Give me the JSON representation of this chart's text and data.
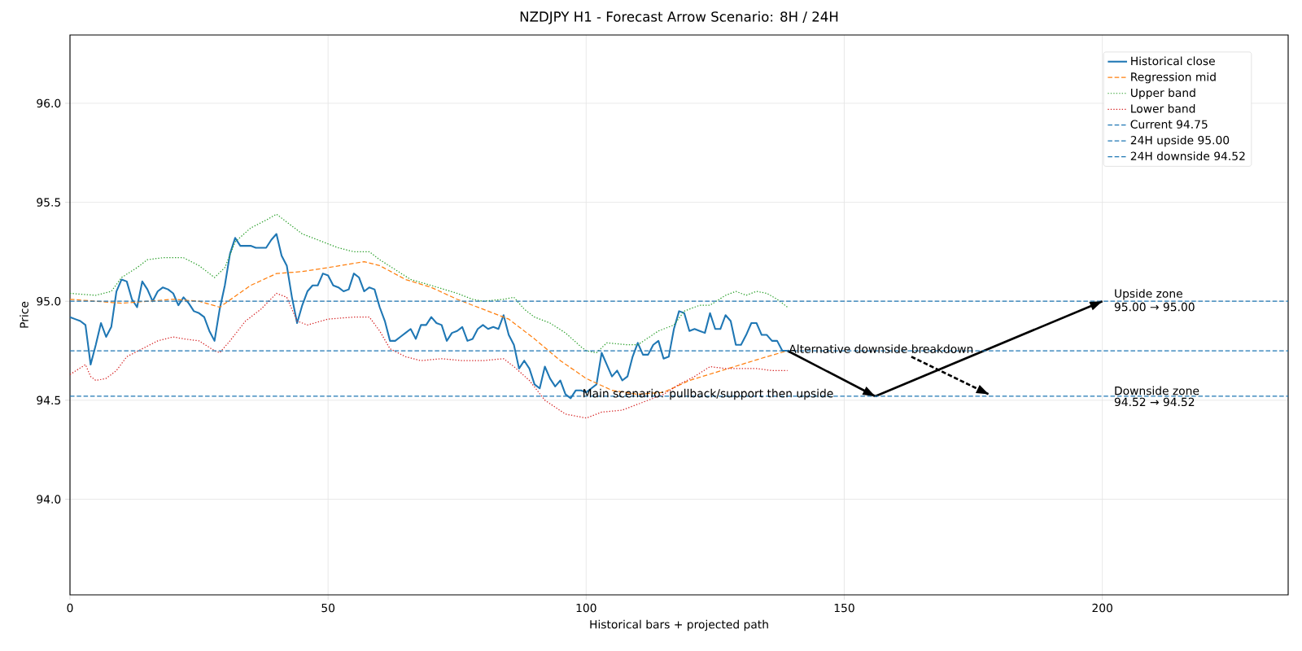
{
  "chart_data": {
    "type": "line",
    "title": "NZDJPY H1 - Forecast Arrow Scenario: 8H / 24H",
    "xlabel": "Historical bars + projected path",
    "ylabel": "Price",
    "xlim": [
      0,
      236
    ],
    "ylim": [
      93.517,
      96.345
    ],
    "xticks": [
      0,
      50,
      100,
      150,
      200
    ],
    "yticks": [
      {
        "value": 94.0,
        "label": "94.0"
      },
      {
        "value": 94.5,
        "label": "94.5"
      },
      {
        "value": 95.0,
        "label": "95.0"
      },
      {
        "value": 95.5,
        "label": "95.5"
      },
      {
        "value": 96.0,
        "label": "96.0"
      }
    ],
    "grid": true,
    "legend": "top right",
    "series": [
      {
        "name": "Historical close",
        "color": "#1f77b4",
        "line_style": "solid",
        "x": [
          0,
          1,
          2,
          3,
          4,
          5,
          6,
          7,
          8,
          9,
          10,
          11,
          12,
          13,
          14,
          15,
          16,
          17,
          18,
          19,
          20,
          21,
          22,
          23,
          24,
          25,
          26,
          27,
          28,
          29,
          30,
          31,
          32,
          33,
          34,
          35,
          36,
          37,
          38,
          39,
          40,
          41,
          42,
          43,
          44,
          45,
          46,
          47,
          48,
          49,
          50,
          51,
          52,
          53,
          54,
          55,
          56,
          57,
          58,
          59,
          60,
          61,
          62,
          63,
          64,
          65,
          66,
          67,
          68,
          69,
          70,
          71,
          72,
          73,
          74,
          75,
          76,
          77,
          78,
          79,
          80,
          81,
          82,
          83,
          84,
          85,
          86,
          87,
          88,
          89,
          90,
          91,
          92,
          93,
          94,
          95,
          96,
          97,
          98,
          99,
          100,
          101,
          102,
          103,
          104,
          105,
          106,
          107,
          108,
          109,
          110,
          111,
          112,
          113,
          114,
          115,
          116,
          117,
          118,
          119,
          120,
          121,
          122,
          123,
          124,
          125,
          126,
          127,
          128,
          129,
          130,
          131,
          132,
          133,
          134,
          135,
          136,
          137,
          138,
          139
        ],
        "values": [
          94.92,
          94.91,
          94.9,
          94.88,
          94.68,
          94.78,
          94.89,
          94.82,
          94.87,
          95.05,
          95.11,
          95.1,
          95.01,
          94.97,
          95.1,
          95.06,
          95.0,
          95.05,
          95.07,
          95.06,
          95.04,
          94.98,
          95.02,
          94.99,
          94.95,
          94.94,
          94.92,
          94.85,
          94.8,
          94.96,
          95.08,
          95.24,
          95.32,
          95.28,
          95.28,
          95.28,
          95.27,
          95.27,
          95.27,
          95.31,
          95.34,
          95.23,
          95.18,
          95.02,
          94.89,
          94.98,
          95.05,
          95.08,
          95.08,
          95.14,
          95.13,
          95.08,
          95.07,
          95.05,
          95.06,
          95.14,
          95.12,
          95.05,
          95.07,
          95.06,
          94.97,
          94.9,
          94.8,
          94.8,
          94.82,
          94.84,
          94.86,
          94.81,
          94.88,
          94.88,
          94.92,
          94.89,
          94.88,
          94.8,
          94.84,
          94.85,
          94.87,
          94.8,
          94.81,
          94.86,
          94.88,
          94.86,
          94.87,
          94.86,
          94.93,
          94.83,
          94.78,
          94.66,
          94.7,
          94.66,
          94.58,
          94.56,
          94.67,
          94.61,
          94.57,
          94.6,
          94.53,
          94.51,
          94.55,
          94.55,
          94.54,
          94.56,
          94.58,
          94.74,
          94.68,
          94.62,
          94.65,
          94.6,
          94.62,
          94.72,
          94.79,
          94.73,
          94.73,
          94.78,
          94.8,
          94.71,
          94.72,
          94.86,
          94.95,
          94.94,
          94.85,
          94.86,
          94.85,
          94.84,
          94.94,
          94.86,
          94.86,
          94.93,
          94.9,
          94.78,
          94.78,
          94.83,
          94.89,
          94.89,
          94.83,
          94.83,
          94.8,
          94.8,
          94.75,
          94.75
        ]
      },
      {
        "name": "Regression mid",
        "color": "#ff7f0e",
        "line_style": "dashed",
        "x": [
          0,
          10,
          20,
          25,
          29,
          35,
          40,
          45,
          50,
          57,
          60,
          65,
          70,
          75,
          80,
          85,
          90,
          95,
          100,
          105,
          110,
          115,
          120,
          125,
          130,
          135,
          139
        ],
        "values": [
          95.01,
          94.99,
          95.01,
          95.0,
          94.97,
          95.08,
          95.14,
          95.15,
          95.17,
          95.2,
          95.18,
          95.11,
          95.07,
          95.01,
          94.96,
          94.91,
          94.81,
          94.7,
          94.61,
          94.55,
          94.53,
          94.54,
          94.6,
          94.64,
          94.68,
          94.72,
          94.75
        ]
      },
      {
        "name": "Upper band",
        "color": "#2ca02c",
        "line_style": "dotted",
        "x": [
          0,
          5,
          8,
          10,
          13,
          15,
          18,
          22,
          25,
          28,
          30,
          32,
          35,
          38,
          40,
          42,
          45,
          48,
          52,
          55,
          58,
          60,
          63,
          66,
          70,
          75,
          78,
          80,
          84,
          86,
          88,
          90,
          93,
          96,
          99,
          100,
          102,
          104,
          108,
          110,
          114,
          117,
          119,
          122,
          124,
          127,
          129,
          131,
          133,
          135,
          137,
          139
        ],
        "values": [
          95.04,
          95.03,
          95.05,
          95.12,
          95.17,
          95.21,
          95.22,
          95.22,
          95.18,
          95.12,
          95.17,
          95.3,
          95.37,
          95.41,
          95.44,
          95.4,
          95.34,
          95.31,
          95.27,
          95.25,
          95.25,
          95.21,
          95.16,
          95.11,
          95.08,
          95.04,
          95.01,
          95.0,
          95.01,
          95.02,
          94.96,
          94.92,
          94.89,
          94.84,
          94.77,
          94.75,
          94.74,
          94.79,
          94.78,
          94.78,
          94.85,
          94.88,
          94.95,
          94.98,
          94.98,
          95.03,
          95.05,
          95.03,
          95.05,
          95.04,
          95.01,
          94.97
        ]
      },
      {
        "name": "Lower band",
        "color": "#d62728",
        "line_style": "dotted",
        "x": [
          0,
          3,
          4,
          5,
          7,
          9,
          11,
          14,
          17,
          20,
          22,
          25,
          28,
          29,
          31,
          34,
          37,
          40,
          42,
          44,
          46,
          50,
          55,
          58,
          60,
          62,
          65,
          68,
          72,
          76,
          80,
          84,
          86,
          89,
          92,
          96,
          100,
          103,
          107,
          110,
          115,
          118,
          121,
          124,
          127,
          130,
          133,
          136,
          139
        ],
        "values": [
          94.63,
          94.68,
          94.62,
          94.6,
          94.61,
          94.65,
          94.72,
          94.76,
          94.8,
          94.82,
          94.81,
          94.8,
          94.75,
          94.74,
          94.8,
          94.9,
          94.96,
          95.04,
          95.02,
          94.9,
          94.88,
          94.91,
          94.92,
          94.92,
          94.85,
          94.76,
          94.72,
          94.7,
          94.71,
          94.7,
          94.7,
          94.71,
          94.67,
          94.6,
          94.5,
          94.43,
          94.41,
          94.44,
          94.45,
          94.48,
          94.53,
          94.58,
          94.62,
          94.67,
          94.66,
          94.66,
          94.66,
          94.65,
          94.65
        ]
      },
      {
        "color": "#000000",
        "line_style": "solid",
        "x": [
          139,
          156
        ],
        "values": [
          94.75,
          94.52
        ]
      },
      {
        "color": "#000000",
        "line_style": "solid",
        "x": [
          156,
          200
        ],
        "values": [
          94.52,
          95.0
        ]
      },
      {
        "color": "#000000",
        "line_style": "dashed",
        "x": [
          163,
          178
        ],
        "values": [
          94.72,
          94.53
        ]
      }
    ],
    "ref_lines": [
      {
        "axis": "y",
        "value": 94.75,
        "label": "Current 94.75",
        "color": "#1f77b4",
        "line_style": "dashed"
      },
      {
        "axis": "y",
        "value": 95.0,
        "label": "24H upside 95.00",
        "color": "#1f77b4",
        "line_style": "dashed"
      },
      {
        "axis": "y",
        "value": 94.52,
        "label": "24H downside 94.52",
        "color": "#1f77b4",
        "line_style": "dashed"
      }
    ],
    "annotations": [
      {
        "text": "Main scenario: pullback/support then upside",
        "x": 99,
        "y": 94.53
      },
      {
        "text": "Alternative downside breakdown",
        "x": 139,
        "y": 94.76
      },
      {
        "text": "Upside zone",
        "x": 202,
        "y": 95.0
      },
      {
        "text": "95.00 → 95.00",
        "x": 202,
        "y": 95.0
      },
      {
        "text": "Downside zone",
        "x": 202,
        "y": 94.52
      },
      {
        "text": "94.52 → 94.52",
        "x": 202,
        "y": 94.52
      }
    ]
  }
}
